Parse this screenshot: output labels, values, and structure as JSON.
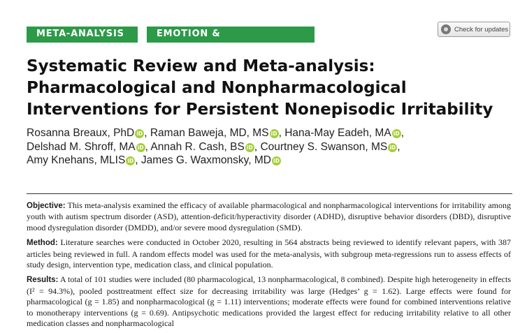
{
  "tags": [
    "META-ANALYSIS",
    "EMOTION & DYSREGULATION"
  ],
  "check_updates_label": "Check for updates",
  "title": "Systematic Review and Meta-analysis: Pharmacological and Nonpharmacological Interventions for Persistent Nonepisodic Irritability",
  "authors": [
    "Rosanna Breaux, PhD",
    "Raman Baweja, MD, MS",
    "Hana-May Eadeh, MA",
    "Delshad M. Shroff, MA",
    "Annah R. Cash, BS",
    "Courtney S. Swanson, MS",
    "Amy Knehans, MLIS",
    "James G. Waxmonsky, MD"
  ],
  "orcid_badge": "iD",
  "abstract": {
    "objective_label": "Objective:",
    "objective_text": "This meta-analysis examined the efficacy of available pharmacological and nonpharmacological interventions for irritability among youth with autism spectrum disorder (ASD), attention-deficit/hyperactivity disorder (ADHD), disruptive behavior disorders (DBD), disruptive mood dysregulation disorder (DMDD), and/or severe mood dysregulation (SMD).",
    "method_label": "Method:",
    "method_text": "Literature searches were conducted in October 2020, resulting in 564 abstracts being reviewed to identify relevant papers, with 387 articles being reviewed in full. A random effects model was used for the meta-analysis, with subgroup meta-regressions run to assess effects of study design, intervention type, medication class, and clinical population.",
    "results_label": "Results:",
    "results_text": "A total of 101 studies were included (80 pharmacological, 13 nonpharmacological, 8 combined). Despite high heterogeneity in effects (I² = 94.3%), pooled posttreatment effect size for decreasing irritability was large (Hedges’ g = 1.62). Large effects were found for pharmacological (g = 1.85) and nonpharmacological (g = 1.11) interventions; moderate effects were found for combined interventions relative to monotherapy interventions (g = 0.69). Antipsychotic medications provided the largest effect for reducing irritability relative to all other medication classes and nonpharmacological"
  }
}
